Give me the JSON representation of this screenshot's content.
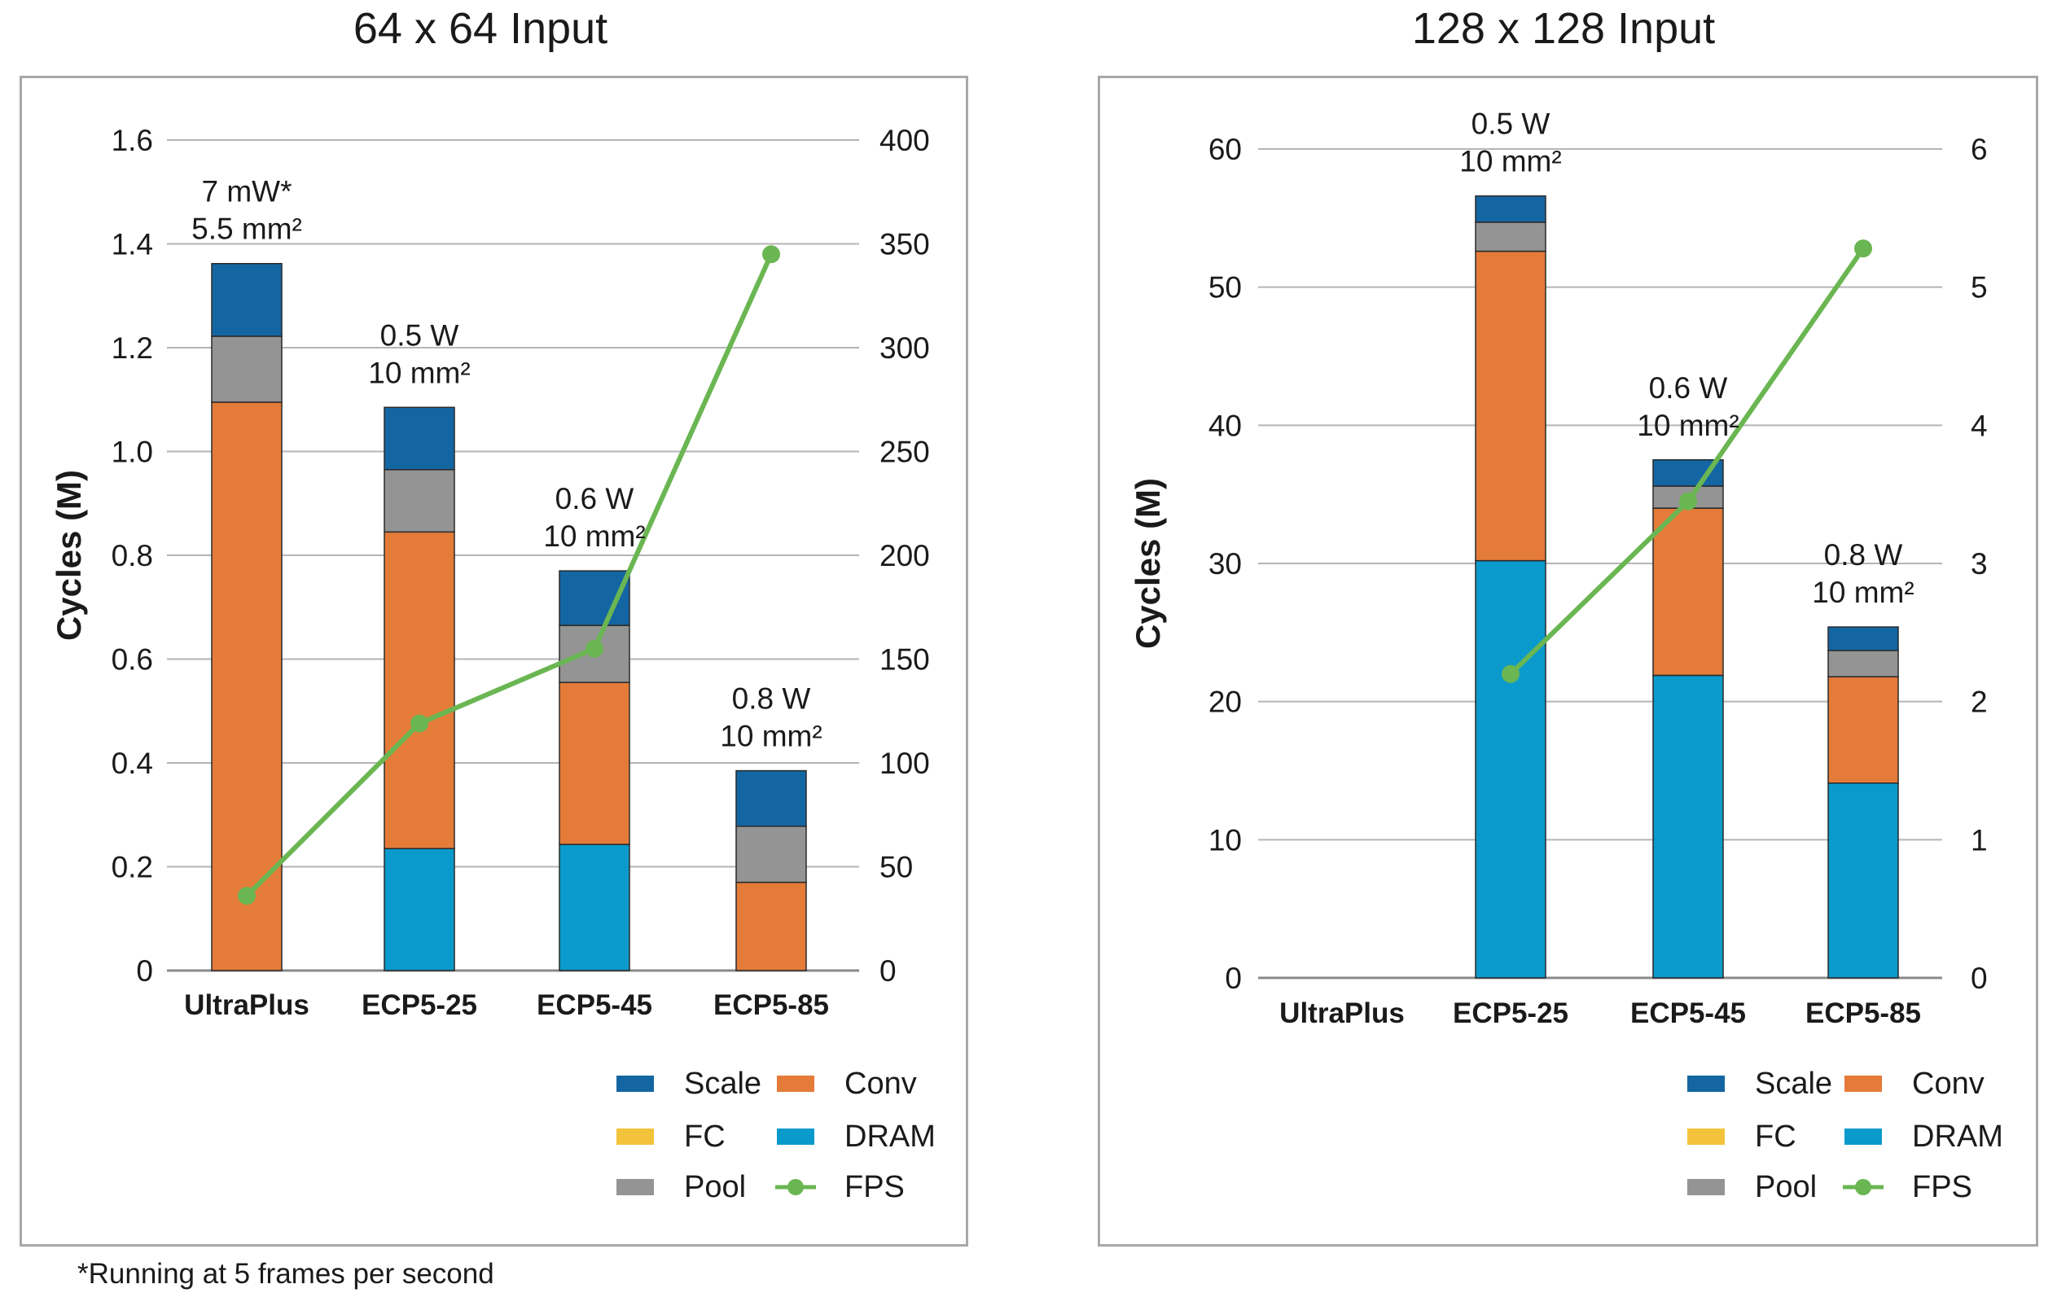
{
  "footnote": "*Running at 5 frames per second",
  "series_colors": {
    "Scale": "#1466a3",
    "Conv": "#e47b39",
    "FC": "#f4c33c",
    "DRAM": "#0b9acc",
    "Pool": "#949494",
    "FPS": "#6ab652"
  },
  "chart_data": [
    {
      "type": "bar",
      "stacked": true,
      "title": "64 x 64 Input",
      "ylabel": "Cycles (M)",
      "ylim": [
        0,
        1.6
      ],
      "yticks": [
        "0",
        "0.2",
        "0.4",
        "0.6",
        "0.8",
        "1.0",
        "1.2",
        "1.4",
        "1.6"
      ],
      "y2lim": [
        0,
        400
      ],
      "y2ticks": [
        "0",
        "50",
        "100",
        "150",
        "200",
        "250",
        "300",
        "350",
        "400"
      ],
      "grid": true,
      "legend_position": "bottom-right",
      "categories": [
        "UltraPlus",
        "ECP5-25",
        "ECP5-45",
        "ECP5-85"
      ],
      "bar_annotations": [
        [
          "7 mW*",
          "5.5 mm²"
        ],
        [
          "0.5 W",
          "10 mm²"
        ],
        [
          "0.6 W",
          "10 mm²"
        ],
        [
          "0.8 W",
          "10 mm²"
        ]
      ],
      "series": [
        {
          "name": "DRAM",
          "values": [
            0,
            0.235,
            0.243,
            0
          ]
        },
        {
          "name": "FC",
          "values": [
            0,
            0,
            0,
            0
          ]
        },
        {
          "name": "Conv",
          "values": [
            1.095,
            0.61,
            0.312,
            0.17
          ]
        },
        {
          "name": "Pool",
          "values": [
            0.127,
            0.12,
            0.11,
            0.108
          ]
        },
        {
          "name": "Scale",
          "values": [
            0.14,
            0.12,
            0.105,
            0.107
          ]
        }
      ],
      "line_series": {
        "name": "FPS",
        "axis": "right",
        "values": [
          36,
          119,
          155,
          345
        ]
      },
      "legend": [
        "Scale",
        "Conv",
        "FC",
        "DRAM",
        "Pool",
        "FPS"
      ]
    },
    {
      "type": "bar",
      "stacked": true,
      "title": "128 x 128 Input",
      "ylabel": "Cycles (M)",
      "ylim": [
        0,
        60
      ],
      "yticks": [
        "0",
        "10",
        "20",
        "30",
        "40",
        "50",
        "60"
      ],
      "y2lim": [
        0,
        6
      ],
      "y2ticks": [
        "0",
        "1",
        "2",
        "3",
        "4",
        "5",
        "6"
      ],
      "grid": true,
      "legend_position": "bottom-right",
      "categories": [
        "UltraPlus",
        "ECP5-25",
        "ECP5-45",
        "ECP5-85"
      ],
      "bar_annotations": [
        [],
        [
          "0.5 W",
          "10 mm²"
        ],
        [
          "0.6 W",
          "10 mm²"
        ],
        [
          "0.8 W",
          "10 mm²"
        ]
      ],
      "series": [
        {
          "name": "DRAM",
          "values": [
            0,
            30.2,
            21.9,
            14.1
          ]
        },
        {
          "name": "FC",
          "values": [
            0,
            0,
            0,
            0
          ]
        },
        {
          "name": "Conv",
          "values": [
            0,
            22.4,
            12.1,
            7.7
          ]
        },
        {
          "name": "Pool",
          "values": [
            0,
            2.1,
            1.6,
            1.9
          ]
        },
        {
          "name": "Scale",
          "values": [
            0,
            1.9,
            1.9,
            1.7
          ]
        }
      ],
      "line_series": {
        "name": "FPS",
        "axis": "right",
        "values": [
          null,
          2.2,
          3.45,
          5.28
        ]
      },
      "legend": [
        "Scale",
        "Conv",
        "FC",
        "DRAM",
        "Pool",
        "FPS"
      ]
    }
  ]
}
